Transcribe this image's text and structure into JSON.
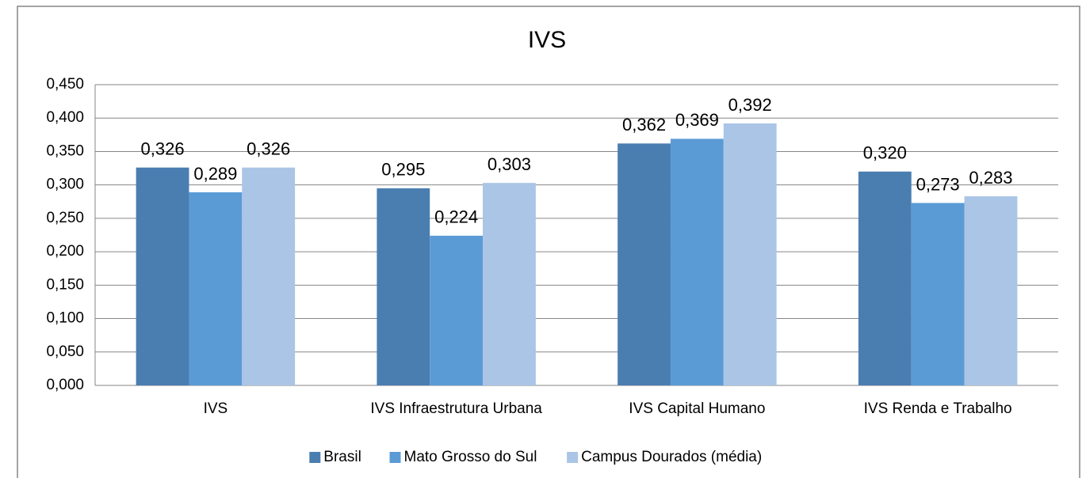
{
  "chart_data": {
    "type": "bar",
    "title": "IVS",
    "categories": [
      "IVS",
      "IVS Infraestrutura Urbana",
      "IVS Capital Humano",
      "IVS Renda e Trabalho"
    ],
    "series": [
      {
        "name": "Brasil",
        "color": "#4a7eb1",
        "values": [
          0.326,
          0.295,
          0.362,
          0.32
        ],
        "value_labels": [
          "0,326",
          "0,295",
          "0,362",
          "0,320"
        ]
      },
      {
        "name": "Mato Grosso do Sul",
        "color": "#5b9bd5",
        "values": [
          0.289,
          0.224,
          0.369,
          0.273
        ],
        "value_labels": [
          "0,289",
          "0,224",
          "0,369",
          "0,273"
        ]
      },
      {
        "name": "Campus Dourados (média)",
        "color": "#aac5e6",
        "values": [
          0.326,
          0.303,
          0.392,
          0.283
        ],
        "value_labels": [
          "0,326",
          "0,303",
          "0,392",
          "0,283"
        ]
      }
    ],
    "ylim": [
      0,
      0.45
    ],
    "yticks": [
      {
        "value": 0,
        "label": "0,000"
      },
      {
        "value": 0.05,
        "label": "0,050"
      },
      {
        "value": 0.1,
        "label": "0,100"
      },
      {
        "value": 0.15,
        "label": "0,150"
      },
      {
        "value": 0.2,
        "label": "0,200"
      },
      {
        "value": 0.25,
        "label": "0,250"
      },
      {
        "value": 0.3,
        "label": "0,300"
      },
      {
        "value": 0.35,
        "label": "0,350"
      },
      {
        "value": 0.4,
        "label": "0,400"
      },
      {
        "value": 0.45,
        "label": "0,450"
      }
    ],
    "grid": true,
    "legend": "bottom"
  }
}
